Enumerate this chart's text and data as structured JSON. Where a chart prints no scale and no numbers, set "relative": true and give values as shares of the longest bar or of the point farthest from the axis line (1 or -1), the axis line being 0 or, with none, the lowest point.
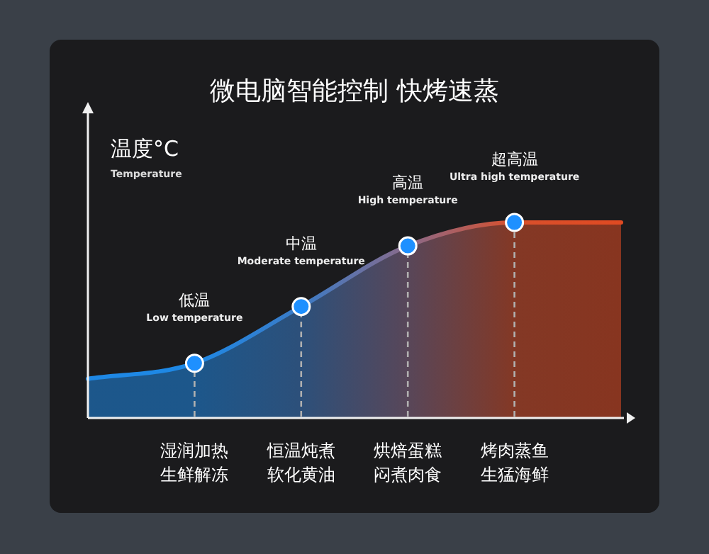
{
  "chart_data": {
    "type": "area",
    "title": "微电脑智能控制 快烤速蒸",
    "ylabel": "温度°C\nTemperature",
    "relative": true,
    "categories": [
      null,
      "湿润加热生鲜解冻",
      "恒温炖煮软化黄油",
      "烘焙蛋糕闷煮肉食",
      "烤肉蒸鱼生猛海鲜",
      null
    ],
    "series": [
      {
        "colors": [
          "#1e88e5",
          "#1e88e5",
          "#3b7bc6",
          "#8a6a8a",
          "#d9502c",
          "#e04a22"
        ],
        "marker": "none",
        "values": [
          0.2,
          0.28,
          0.57,
          0.88,
          1.0,
          1.0
        ]
      },
      {
        "type": "lollipop",
        "color": "#1e90ff",
        "marker": "circle",
        "line_style": "dashed",
        "x": [
          "湿润加热生鲜解冻",
          "恒温炖煮软化黄油",
          "烘焙蛋糕闷煮肉食",
          "烤肉蒸鱼生猛海鲜"
        ],
        "values": [
          0.28,
          0.57,
          0.88,
          1.0
        ]
      }
    ],
    "annotations": [
      {
        "text": "低温\nLow temperature",
        "x": "湿润加热生鲜解冻",
        "y": 0.28
      },
      {
        "text": "中温\nModerate temperature",
        "x": "恒温炖煮软化黄油",
        "y": 0.57
      },
      {
        "text": "高温\nHigh temperature",
        "x": "烘焙蛋糕闷煮肉食",
        "y": 0.88
      },
      {
        "text": "超高温\nUltra high temperature",
        "x": "烤肉蒸鱼生猛海鲜",
        "y": 1.0
      }
    ]
  }
}
